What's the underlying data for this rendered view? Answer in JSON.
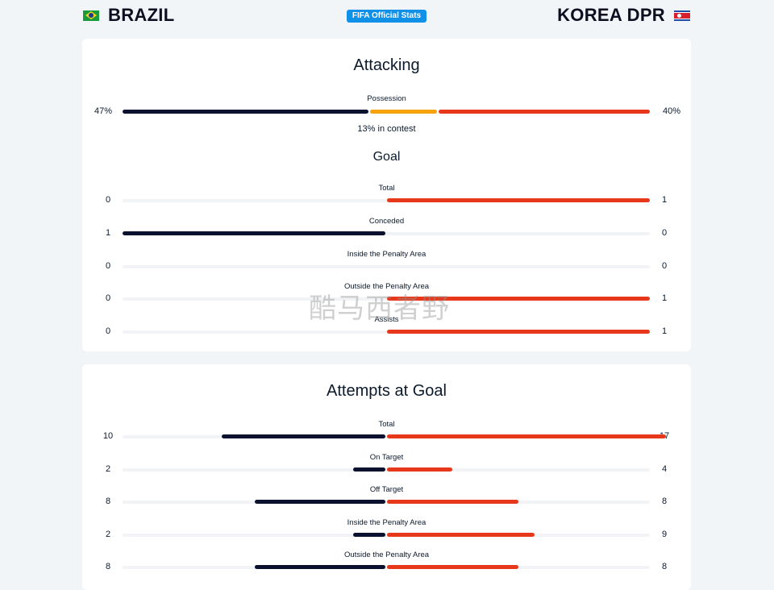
{
  "header": {
    "home_team": "BRAZIL",
    "away_team": "KOREA DPR",
    "badge": "FIFA Official Stats",
    "home_flag_icon": "brazil-flag-icon",
    "away_flag_icon": "korea-dpr-flag-icon"
  },
  "colors": {
    "home": "#0a1230",
    "away": "#e8381b",
    "contest": "#f4a20d",
    "badge": "#1190e8"
  },
  "attacking": {
    "title": "Attacking",
    "possession": {
      "label": "Possession",
      "home": "47%",
      "away": "40%",
      "home_pct": 47,
      "contest_pct": 13,
      "away_pct": 40,
      "contest_text": "13% in contest"
    },
    "goal_title": "Goal",
    "goal_stats": [
      {
        "label": "Total",
        "home": 0,
        "away": 1
      },
      {
        "label": "Conceded",
        "home": 1,
        "away": 0
      },
      {
        "label": "Inside the Penalty Area",
        "home": 0,
        "away": 0
      },
      {
        "label": "Outside the Penalty Area",
        "home": 0,
        "away": 1
      },
      {
        "label": "Assists",
        "home": 0,
        "away": 1
      }
    ]
  },
  "attempts": {
    "title": "Attempts at Goal",
    "stats": [
      {
        "label": "Total",
        "home": 10,
        "away": 17
      },
      {
        "label": "On Target",
        "home": 2,
        "away": 4
      },
      {
        "label": "Off Target",
        "home": 8,
        "away": 8
      },
      {
        "label": "Inside the Penalty Area",
        "home": 2,
        "away": 9
      },
      {
        "label": "Outside the Penalty Area",
        "home": 8,
        "away": 8
      }
    ]
  },
  "watermark": "酷马西者野"
}
